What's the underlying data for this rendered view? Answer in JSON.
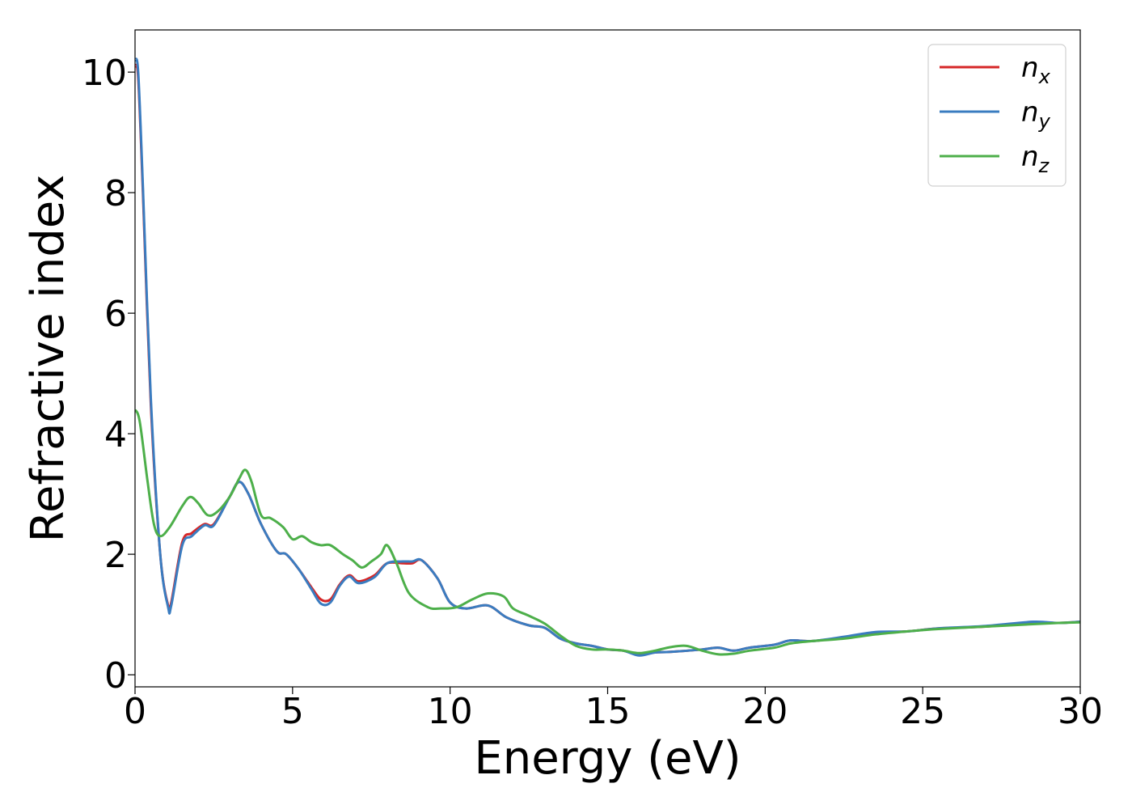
{
  "chart_data": {
    "type": "line",
    "title": "",
    "xlabel": "Energy (eV)",
    "ylabel": "Refractive index",
    "xlim": [
      0,
      30
    ],
    "ylim": [
      -0.2,
      10.7
    ],
    "xticks": [
      "0",
      "5",
      "10",
      "15",
      "20",
      "25",
      "30"
    ],
    "xtick_values": [
      0,
      5,
      10,
      15,
      20,
      25,
      30
    ],
    "yticks": [
      "0",
      "2",
      "4",
      "6",
      "8",
      "10"
    ],
    "ytick_values": [
      0,
      2,
      4,
      6,
      8,
      10
    ],
    "grid": false,
    "legend_position": "top-right",
    "series": [
      {
        "name": "n",
        "subscript": "x",
        "color": "#d62728",
        "points": [
          [
            0,
            10.1
          ],
          [
            0.1,
            9.9
          ],
          [
            0.25,
            8.0
          ],
          [
            0.5,
            4.5
          ],
          [
            0.8,
            2.0
          ],
          [
            1.05,
            1.15
          ],
          [
            1.15,
            1.2
          ],
          [
            1.5,
            2.2
          ],
          [
            1.8,
            2.35
          ],
          [
            2.2,
            2.5
          ],
          [
            2.5,
            2.5
          ],
          [
            3.0,
            2.95
          ],
          [
            3.3,
            3.2
          ],
          [
            3.6,
            3.0
          ],
          [
            4.0,
            2.5
          ],
          [
            4.5,
            2.05
          ],
          [
            4.8,
            2.0
          ],
          [
            5.2,
            1.75
          ],
          [
            5.6,
            1.45
          ],
          [
            5.9,
            1.25
          ],
          [
            6.2,
            1.25
          ],
          [
            6.5,
            1.5
          ],
          [
            6.8,
            1.65
          ],
          [
            7.1,
            1.55
          ],
          [
            7.6,
            1.65
          ],
          [
            8.0,
            1.85
          ],
          [
            8.5,
            1.85
          ],
          [
            8.8,
            1.85
          ],
          [
            9.1,
            1.9
          ],
          [
            9.6,
            1.6
          ],
          [
            10.0,
            1.2
          ],
          [
            10.5,
            1.1
          ],
          [
            11.2,
            1.15
          ],
          [
            11.8,
            0.95
          ],
          [
            12.5,
            0.82
          ],
          [
            13.0,
            0.78
          ],
          [
            13.5,
            0.6
          ],
          [
            14.0,
            0.52
          ],
          [
            14.5,
            0.48
          ],
          [
            15.0,
            0.42
          ],
          [
            15.5,
            0.4
          ],
          [
            16.0,
            0.33
          ],
          [
            16.5,
            0.37
          ],
          [
            17.0,
            0.38
          ],
          [
            18.0,
            0.42
          ],
          [
            18.5,
            0.45
          ],
          [
            19.0,
            0.4
          ],
          [
            19.5,
            0.45
          ],
          [
            20.3,
            0.5
          ],
          [
            20.8,
            0.57
          ],
          [
            21.5,
            0.56
          ],
          [
            22.5,
            0.62
          ],
          [
            23.5,
            0.7
          ],
          [
            24.5,
            0.72
          ],
          [
            25.5,
            0.77
          ],
          [
            27.0,
            0.8
          ],
          [
            28.5,
            0.87
          ],
          [
            29.3,
            0.86
          ],
          [
            30,
            0.88
          ]
        ]
      },
      {
        "name": "n",
        "subscript": "y",
        "color": "#3a7cc0",
        "points": [
          [
            0,
            10.2
          ],
          [
            0.1,
            10.0
          ],
          [
            0.25,
            8.1
          ],
          [
            0.5,
            4.6
          ],
          [
            0.8,
            2.0
          ],
          [
            1.05,
            1.12
          ],
          [
            1.15,
            1.15
          ],
          [
            1.5,
            2.15
          ],
          [
            1.8,
            2.3
          ],
          [
            2.2,
            2.48
          ],
          [
            2.5,
            2.48
          ],
          [
            3.0,
            2.95
          ],
          [
            3.3,
            3.2
          ],
          [
            3.6,
            3.0
          ],
          [
            4.0,
            2.5
          ],
          [
            4.5,
            2.05
          ],
          [
            4.8,
            2.0
          ],
          [
            5.2,
            1.75
          ],
          [
            5.6,
            1.42
          ],
          [
            5.9,
            1.18
          ],
          [
            6.2,
            1.2
          ],
          [
            6.5,
            1.48
          ],
          [
            6.8,
            1.63
          ],
          [
            7.1,
            1.52
          ],
          [
            7.6,
            1.62
          ],
          [
            8.0,
            1.85
          ],
          [
            8.5,
            1.88
          ],
          [
            8.8,
            1.88
          ],
          [
            9.1,
            1.9
          ],
          [
            9.6,
            1.6
          ],
          [
            10.0,
            1.2
          ],
          [
            10.5,
            1.1
          ],
          [
            11.2,
            1.15
          ],
          [
            11.8,
            0.95
          ],
          [
            12.5,
            0.82
          ],
          [
            13.0,
            0.78
          ],
          [
            13.5,
            0.6
          ],
          [
            14.0,
            0.52
          ],
          [
            14.5,
            0.48
          ],
          [
            15.0,
            0.42
          ],
          [
            15.5,
            0.4
          ],
          [
            16.0,
            0.32
          ],
          [
            16.5,
            0.37
          ],
          [
            17.0,
            0.38
          ],
          [
            18.0,
            0.42
          ],
          [
            18.5,
            0.45
          ],
          [
            19.0,
            0.4
          ],
          [
            19.5,
            0.45
          ],
          [
            20.3,
            0.5
          ],
          [
            20.8,
            0.57
          ],
          [
            21.5,
            0.56
          ],
          [
            22.5,
            0.63
          ],
          [
            23.5,
            0.71
          ],
          [
            24.5,
            0.72
          ],
          [
            25.5,
            0.77
          ],
          [
            27.0,
            0.81
          ],
          [
            28.5,
            0.88
          ],
          [
            29.3,
            0.86
          ],
          [
            30,
            0.88
          ]
        ]
      },
      {
        "name": "n",
        "subscript": "z",
        "color": "#4daf4a",
        "points": [
          [
            0,
            4.4
          ],
          [
            0.15,
            4.2
          ],
          [
            0.4,
            3.2
          ],
          [
            0.6,
            2.5
          ],
          [
            0.8,
            2.3
          ],
          [
            1.1,
            2.45
          ],
          [
            1.5,
            2.8
          ],
          [
            1.75,
            2.95
          ],
          [
            2.0,
            2.85
          ],
          [
            2.3,
            2.65
          ],
          [
            2.6,
            2.7
          ],
          [
            3.0,
            2.95
          ],
          [
            3.3,
            3.25
          ],
          [
            3.5,
            3.4
          ],
          [
            3.7,
            3.2
          ],
          [
            4.0,
            2.65
          ],
          [
            4.3,
            2.6
          ],
          [
            4.7,
            2.45
          ],
          [
            5.0,
            2.25
          ],
          [
            5.3,
            2.3
          ],
          [
            5.6,
            2.2
          ],
          [
            5.9,
            2.15
          ],
          [
            6.2,
            2.15
          ],
          [
            6.6,
            2.0
          ],
          [
            6.9,
            1.9
          ],
          [
            7.2,
            1.78
          ],
          [
            7.5,
            1.88
          ],
          [
            7.8,
            2.0
          ],
          [
            8.0,
            2.15
          ],
          [
            8.3,
            1.85
          ],
          [
            8.7,
            1.35
          ],
          [
            9.3,
            1.12
          ],
          [
            9.7,
            1.1
          ],
          [
            10.2,
            1.12
          ],
          [
            10.7,
            1.25
          ],
          [
            11.2,
            1.35
          ],
          [
            11.7,
            1.3
          ],
          [
            12.0,
            1.1
          ],
          [
            12.5,
            0.98
          ],
          [
            13.0,
            0.85
          ],
          [
            13.5,
            0.65
          ],
          [
            14.0,
            0.48
          ],
          [
            14.5,
            0.42
          ],
          [
            15.0,
            0.42
          ],
          [
            15.5,
            0.4
          ],
          [
            16.0,
            0.36
          ],
          [
            16.5,
            0.4
          ],
          [
            17.0,
            0.46
          ],
          [
            17.5,
            0.48
          ],
          [
            18.0,
            0.4
          ],
          [
            18.5,
            0.34
          ],
          [
            19.0,
            0.35
          ],
          [
            19.5,
            0.4
          ],
          [
            20.3,
            0.45
          ],
          [
            20.8,
            0.52
          ],
          [
            21.5,
            0.56
          ],
          [
            22.5,
            0.6
          ],
          [
            23.5,
            0.67
          ],
          [
            24.5,
            0.72
          ],
          [
            25.5,
            0.76
          ],
          [
            27.0,
            0.8
          ],
          [
            28.5,
            0.84
          ],
          [
            29.3,
            0.86
          ],
          [
            30,
            0.87
          ]
        ]
      }
    ]
  }
}
